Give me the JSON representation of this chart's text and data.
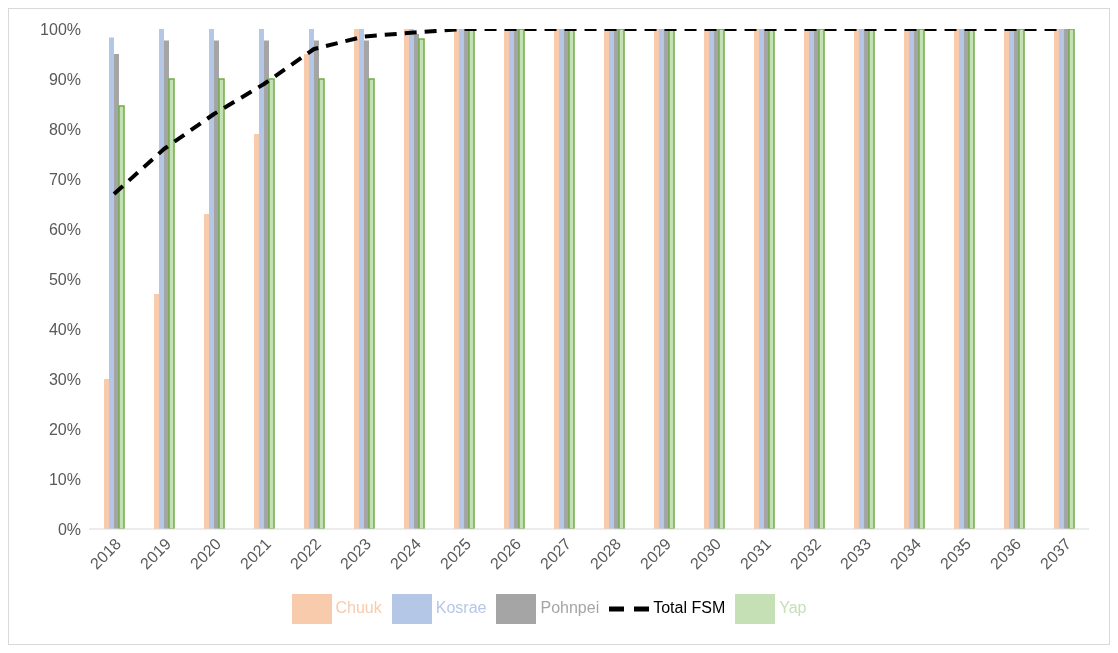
{
  "chart_data": {
    "type": "bar",
    "categories": [
      "2018",
      "2019",
      "2020",
      "2021",
      "2022",
      "2023",
      "2024",
      "2025",
      "2026",
      "2027",
      "2028",
      "2029",
      "2030",
      "2031",
      "2032",
      "2033",
      "2034",
      "2035",
      "2036",
      "2037"
    ],
    "series": [
      {
        "name": "Chuuk",
        "color": "#f8cbad",
        "values": [
          30,
          47,
          63,
          79,
          95,
          100,
          100,
          100,
          100,
          100,
          100,
          100,
          100,
          100,
          100,
          100,
          100,
          100,
          100,
          100
        ]
      },
      {
        "name": "Kosrae",
        "color": "#b4c7e7",
        "values": [
          98.3,
          100,
          100,
          100,
          100,
          100,
          100,
          100,
          100,
          100,
          100,
          100,
          100,
          100,
          100,
          100,
          100,
          100,
          100,
          100
        ]
      },
      {
        "name": "Pohnpei",
        "color": "#a5a5a5",
        "values": [
          95,
          97.7,
          97.7,
          97.7,
          97.7,
          97.7,
          99,
          100,
          100,
          100,
          100,
          100,
          100,
          100,
          100,
          100,
          100,
          100,
          100,
          100
        ]
      },
      {
        "name": "Yap",
        "color": "#c5e0b4",
        "values": [
          84.6,
          90,
          90,
          90,
          90,
          90,
          98,
          100,
          100,
          100,
          100,
          100,
          100,
          100,
          100,
          100,
          100,
          100,
          100,
          100
        ]
      },
      {
        "name": "Total FSM",
        "type": "line",
        "color": "#000000",
        "line_style": "dashed",
        "marker": "none",
        "values": [
          67,
          76,
          83,
          89,
          96,
          98.5,
          99.3,
          100,
          100,
          100,
          100,
          100,
          100,
          100,
          100,
          100,
          100,
          100,
          100,
          100
        ]
      }
    ],
    "ylim": [
      0,
      100
    ],
    "yticks": [
      {
        "value": 0,
        "label": "0%"
      },
      {
        "value": 10,
        "label": "10%"
      },
      {
        "value": 20,
        "label": "20%"
      },
      {
        "value": 30,
        "label": "30%"
      },
      {
        "value": 40,
        "label": "40%"
      },
      {
        "value": 50,
        "label": "50%"
      },
      {
        "value": 60,
        "label": "60%"
      },
      {
        "value": 70,
        "label": "70%"
      },
      {
        "value": 80,
        "label": "80%"
      },
      {
        "value": 90,
        "label": "90%"
      },
      {
        "value": 100,
        "label": "100%"
      }
    ],
    "grid": false,
    "legend": "bottom"
  }
}
